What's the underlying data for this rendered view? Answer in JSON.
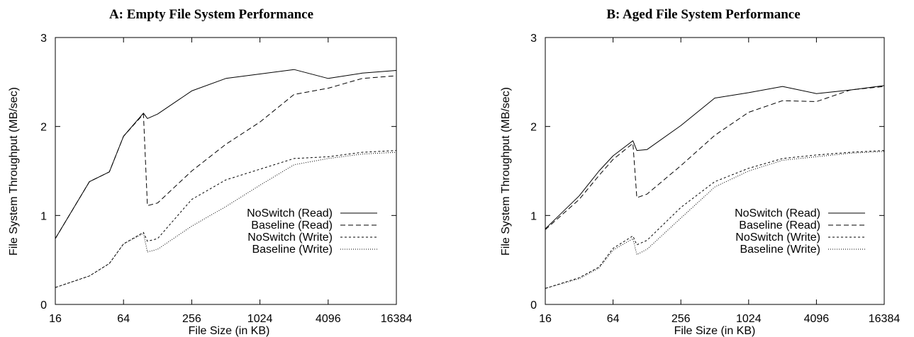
{
  "chart_data": [
    {
      "type": "line",
      "title": "A: Empty File System Performance",
      "xlabel": "File Size (in KB)",
      "ylabel": "File System Throughput (MB/sec)",
      "x_scale": "log2",
      "xlim": [
        16,
        16384
      ],
      "ylim": [
        0,
        3
      ],
      "xticks": [
        "16",
        "64",
        "256",
        "1024",
        "4096",
        "16384"
      ],
      "yticks": [
        "0",
        "1",
        "2",
        "3"
      ],
      "grid": false,
      "legend_position": "bottom-right",
      "series": [
        {
          "name": "NoSwitch (Read)",
          "style": "solid",
          "x": [
            16,
            32,
            48,
            64,
            96,
            104,
            128,
            256,
            512,
            1024,
            2048,
            4096,
            8192,
            16384
          ],
          "y": [
            0.74,
            1.38,
            1.49,
            1.89,
            2.15,
            2.09,
            2.14,
            2.4,
            2.54,
            2.59,
            2.64,
            2.54,
            2.6,
            2.63
          ]
        },
        {
          "name": "Baseline (Read)",
          "style": "dashed",
          "x": [
            16,
            32,
            48,
            64,
            96,
            104,
            128,
            256,
            512,
            1024,
            2048,
            4096,
            8192,
            16384
          ],
          "y": [
            0.74,
            1.38,
            1.49,
            1.89,
            2.14,
            1.11,
            1.14,
            1.5,
            1.8,
            2.05,
            2.36,
            2.43,
            2.54,
            2.57
          ]
        },
        {
          "name": "NoSwitch (Write)",
          "style": "short-dashed",
          "x": [
            16,
            32,
            48,
            64,
            96,
            104,
            128,
            256,
            512,
            1024,
            2048,
            4096,
            8192,
            16384
          ],
          "y": [
            0.19,
            0.32,
            0.46,
            0.68,
            0.81,
            0.71,
            0.74,
            1.18,
            1.4,
            1.52,
            1.64,
            1.66,
            1.71,
            1.73
          ]
        },
        {
          "name": "Baseline (Write)",
          "style": "dotted",
          "x": [
            16,
            32,
            48,
            64,
            96,
            104,
            128,
            256,
            512,
            1024,
            2048,
            4096,
            8192,
            16384
          ],
          "y": [
            0.19,
            0.32,
            0.46,
            0.68,
            0.8,
            0.59,
            0.62,
            0.88,
            1.1,
            1.34,
            1.57,
            1.64,
            1.69,
            1.71
          ]
        }
      ]
    },
    {
      "type": "line",
      "title": "B: Aged File System Performance",
      "xlabel": "File Size (in KB)",
      "ylabel": "File System Throughput (MB/sec)",
      "x_scale": "log2",
      "xlim": [
        16,
        16384
      ],
      "ylim": [
        0,
        3
      ],
      "xticks": [
        "16",
        "64",
        "256",
        "1024",
        "4096",
        "16384"
      ],
      "yticks": [
        "0",
        "1",
        "2",
        "3"
      ],
      "grid": false,
      "legend_position": "bottom-right",
      "series": [
        {
          "name": "NoSwitch (Read)",
          "style": "solid",
          "x": [
            16,
            32,
            48,
            64,
            96,
            104,
            128,
            256,
            512,
            1024,
            2048,
            4096,
            8192,
            16384
          ],
          "y": [
            0.85,
            1.22,
            1.5,
            1.67,
            1.84,
            1.73,
            1.74,
            2.01,
            2.32,
            2.38,
            2.45,
            2.37,
            2.41,
            2.46
          ]
        },
        {
          "name": "Baseline (Read)",
          "style": "dashed",
          "x": [
            16,
            32,
            48,
            64,
            96,
            104,
            128,
            256,
            512,
            1024,
            2048,
            4096,
            8192,
            16384
          ],
          "y": [
            0.84,
            1.18,
            1.45,
            1.63,
            1.81,
            1.2,
            1.24,
            1.56,
            1.9,
            2.16,
            2.29,
            2.28,
            2.41,
            2.45
          ]
        },
        {
          "name": "NoSwitch (Write)",
          "style": "short-dashed",
          "x": [
            16,
            32,
            48,
            64,
            96,
            104,
            128,
            256,
            512,
            1024,
            2048,
            4096,
            8192,
            16384
          ],
          "y": [
            0.18,
            0.3,
            0.42,
            0.63,
            0.77,
            0.67,
            0.72,
            1.09,
            1.38,
            1.53,
            1.64,
            1.68,
            1.71,
            1.73
          ]
        },
        {
          "name": "Baseline (Write)",
          "style": "dotted",
          "x": [
            16,
            32,
            48,
            64,
            96,
            104,
            128,
            256,
            512,
            1024,
            2048,
            4096,
            8192,
            16384
          ],
          "y": [
            0.18,
            0.29,
            0.41,
            0.61,
            0.74,
            0.56,
            0.62,
            0.97,
            1.32,
            1.5,
            1.62,
            1.66,
            1.7,
            1.72
          ]
        }
      ]
    }
  ]
}
